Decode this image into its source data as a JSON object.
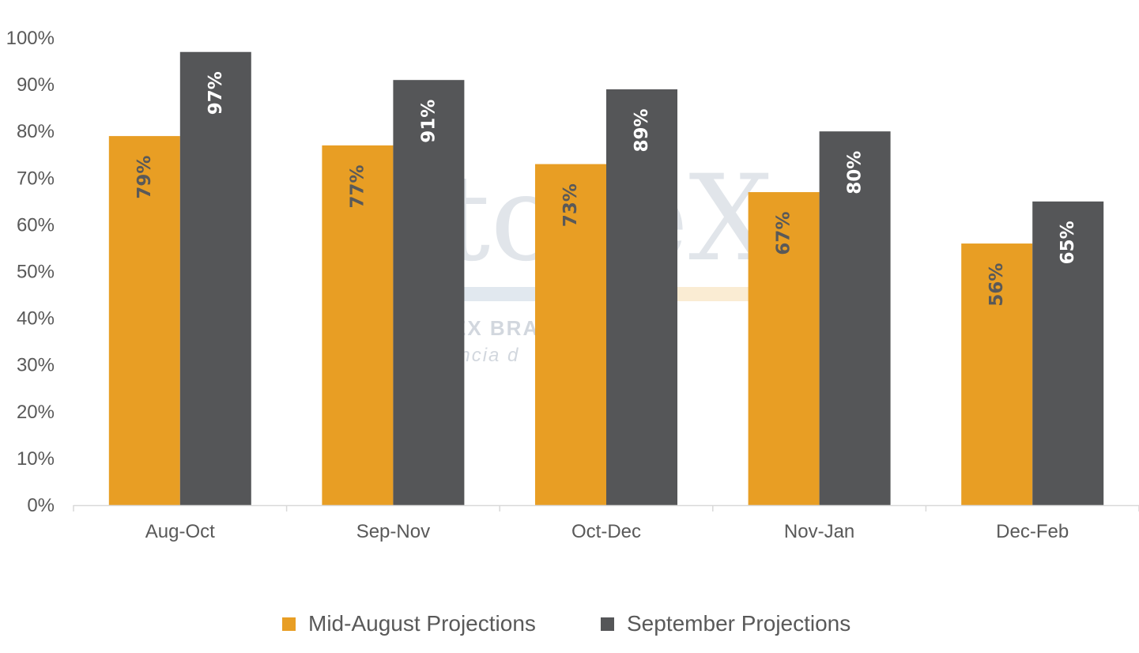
{
  "chart_data": {
    "type": "bar",
    "categories": [
      "Aug-Oct",
      "Sep-Nov",
      "Oct-Dec",
      "Nov-Jan",
      "Dec-Feb"
    ],
    "series": [
      {
        "name": "Mid-August Projections",
        "values": [
          79,
          77,
          73,
          67,
          56
        ],
        "color": "#E89E24",
        "label_color": "#595959"
      },
      {
        "name": "September Projections",
        "values": [
          97,
          91,
          89,
          80,
          65
        ],
        "color": "#555658",
        "label_color": "#FFFFFF"
      }
    ],
    "ylim": [
      0,
      100
    ],
    "yticks": [
      0,
      10,
      20,
      30,
      40,
      50,
      60,
      70,
      80,
      90,
      100
    ],
    "y_unit": "%",
    "gridlines": false,
    "legend_position": "bottom"
  },
  "watermark": {
    "text": "toreX",
    "sub1": "EX BRA",
    "sub2": "ência d",
    "color": "#C9D1DA"
  }
}
